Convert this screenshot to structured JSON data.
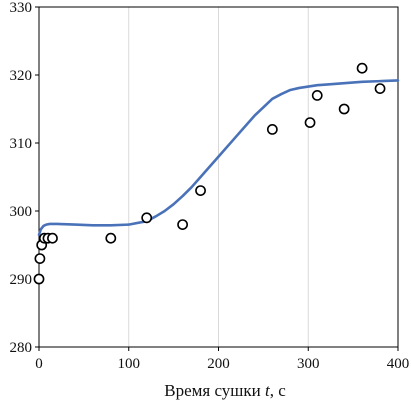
{
  "chart_data": {
    "type": "scatter",
    "title": "",
    "xlabel_main": "Время сушки ",
    "xlabel_var": "t",
    "xlabel_unit": ", с",
    "ylabel": "",
    "xlim": [
      0,
      400
    ],
    "ylim": [
      280,
      330
    ],
    "x_ticks": [
      0,
      100,
      200,
      300,
      400
    ],
    "y_ticks": [
      280,
      290,
      300,
      310,
      320,
      330
    ],
    "grid": "vertical",
    "legend": "none",
    "colors": {
      "line": "#4a72b8",
      "marker_edge": "#000000",
      "marker_fill": "#ffffff",
      "grid": "#d9d9d9",
      "axis": "#000000"
    },
    "series": [
      {
        "kind": "points",
        "x": [
          0,
          1,
          3,
          6,
          10,
          15,
          80,
          120,
          160,
          180,
          260,
          302,
          310,
          340,
          360,
          380
        ],
        "y": [
          290,
          293,
          295,
          296,
          296,
          296,
          296,
          299,
          298,
          303,
          312,
          313,
          317,
          315,
          321,
          318
        ]
      },
      {
        "kind": "curve",
        "x": [
          0,
          2,
          5,
          8,
          12,
          20,
          40,
          60,
          80,
          100,
          120,
          130,
          140,
          150,
          160,
          170,
          180,
          200,
          220,
          240,
          260,
          270,
          280,
          290,
          300,
          310,
          320,
          340,
          360,
          380,
          400
        ],
        "y": [
          296.5,
          297.3,
          297.8,
          298.0,
          298.1,
          298.1,
          298.0,
          297.9,
          297.9,
          298.0,
          298.5,
          299.2,
          300.0,
          301.0,
          302.2,
          303.5,
          305.0,
          308.0,
          311.0,
          314.0,
          316.5,
          317.2,
          317.8,
          318.1,
          318.3,
          318.5,
          318.6,
          318.8,
          319.0,
          319.1,
          319.2
        ]
      }
    ]
  }
}
